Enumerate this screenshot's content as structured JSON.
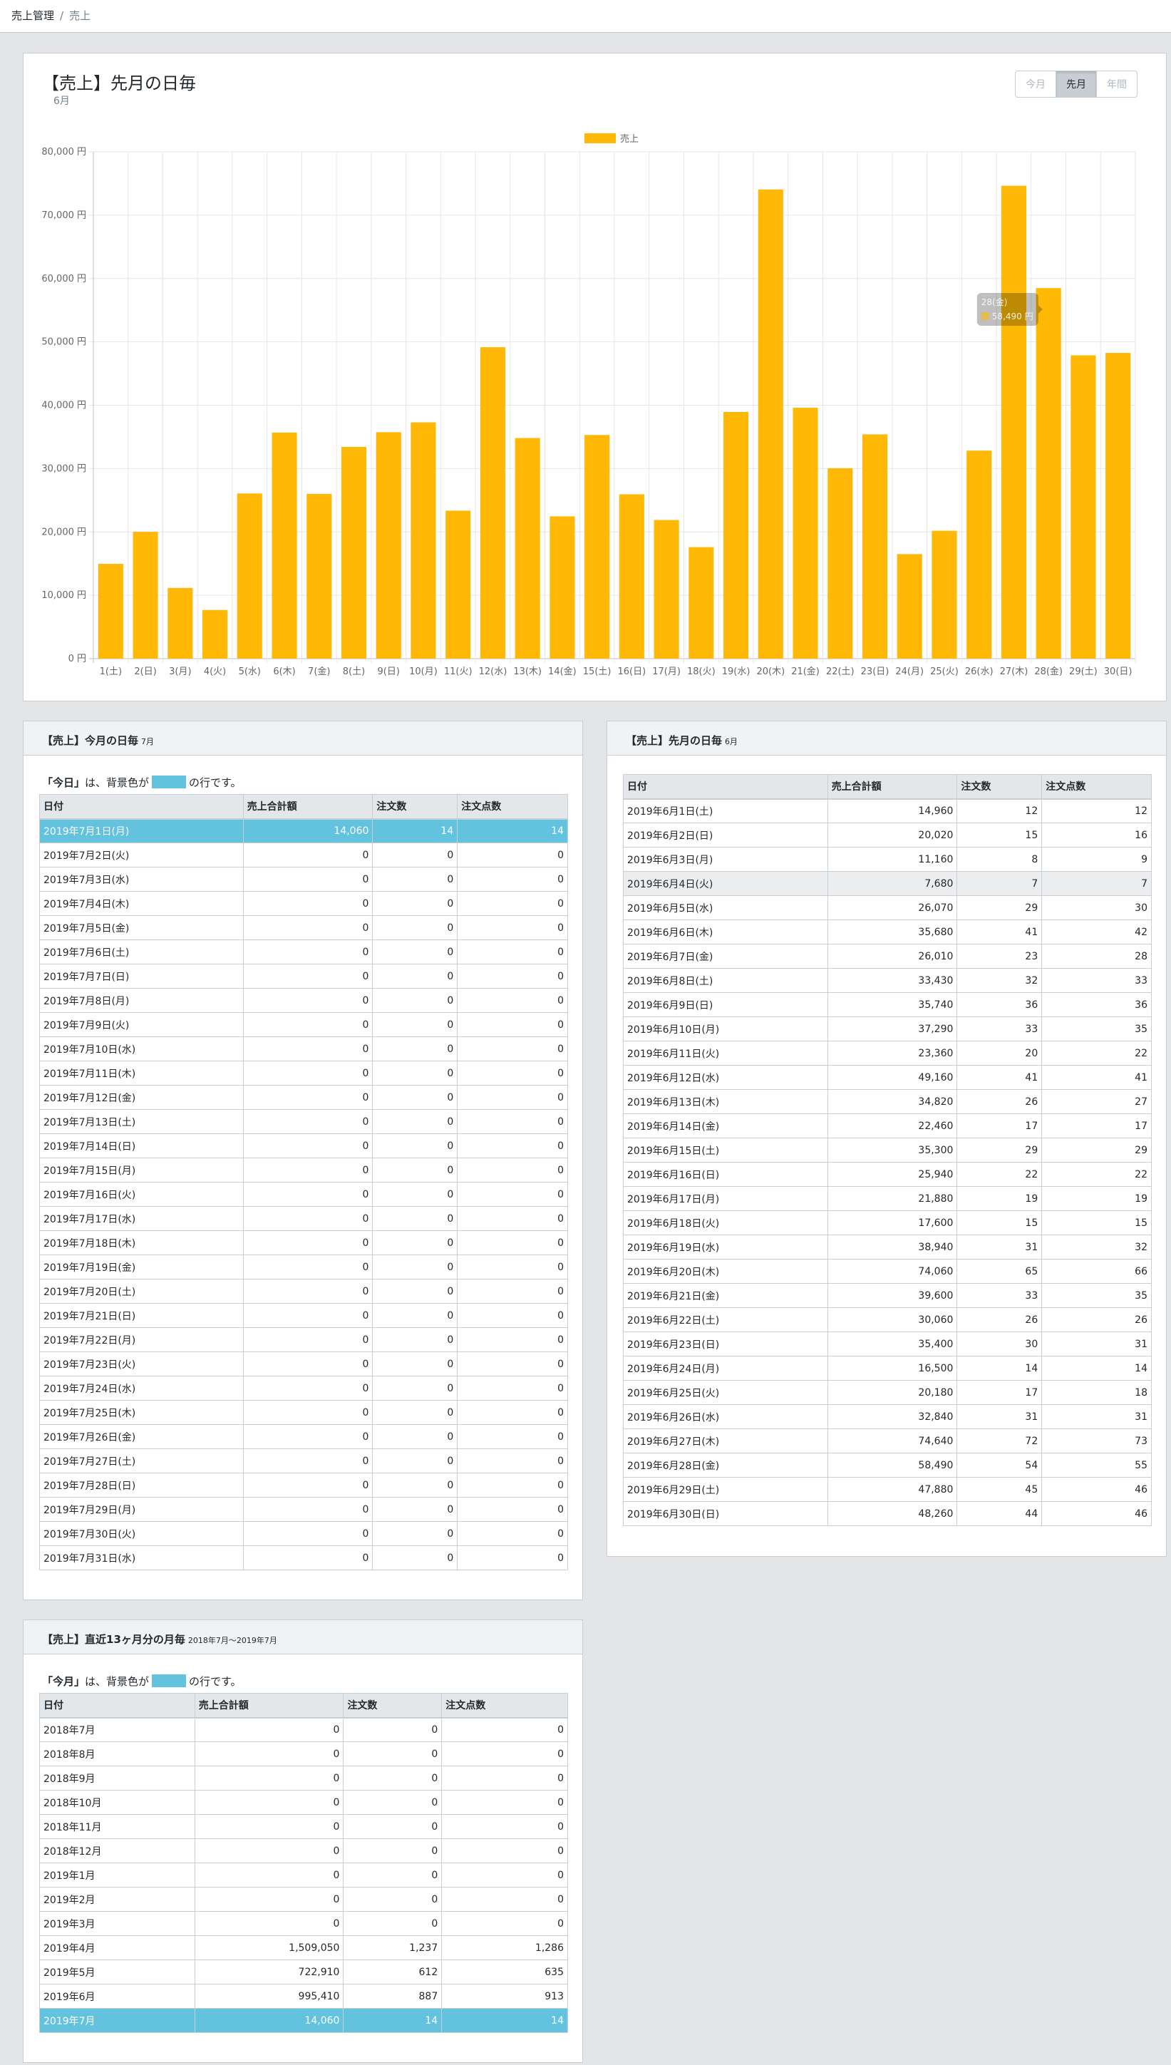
{
  "breadcrumb": {
    "root": "売上管理",
    "separator": "/",
    "current": "売上"
  },
  "chart_card": {
    "title": "【売上】先月の日毎",
    "subtitle": "6月",
    "buttons": [
      "今月",
      "先月",
      "年間"
    ],
    "active_button": "先月"
  },
  "chart_data": {
    "type": "bar",
    "series": [
      {
        "name": "売上",
        "color": "#ffb805",
        "values": [
          14960,
          20020,
          11160,
          7680,
          26070,
          35680,
          26010,
          33430,
          35740,
          37290,
          23360,
          49160,
          34820,
          22460,
          35300,
          25940,
          21880,
          17600,
          38940,
          74060,
          39600,
          30060,
          35400,
          16500,
          20180,
          32840,
          74640,
          58490,
          47880,
          48260
        ]
      }
    ],
    "categories": [
      "1(土)",
      "2(日)",
      "3(月)",
      "4(火)",
      "5(水)",
      "6(木)",
      "7(金)",
      "8(土)",
      "9(日)",
      "10(月)",
      "11(火)",
      "12(水)",
      "13(木)",
      "14(金)",
      "15(土)",
      "16(日)",
      "17(月)",
      "18(火)",
      "19(水)",
      "20(木)",
      "21(金)",
      "22(土)",
      "23(日)",
      "24(月)",
      "25(火)",
      "26(水)",
      "27(木)",
      "28(金)",
      "29(土)",
      "30(日)"
    ],
    "yticks": [
      "0 円",
      "10,000 円",
      "20,000 円",
      "30,000 円",
      "40,000 円",
      "50,000 円",
      "60,000 円",
      "70,000 円",
      "80,000 円"
    ],
    "ylim": [
      0,
      80000
    ],
    "legend_position": "top-center",
    "grid": true,
    "tooltip": {
      "category": "28(金)",
      "value": "58,490 円"
    }
  },
  "this_month": {
    "title": "【売上】今月の日毎",
    "title_small": "7月",
    "note_strong": "「今日」",
    "note_mid": "は、背景色が",
    "note_end": "の行です。",
    "headers": [
      "日付",
      "売上合計額",
      "注文数",
      "注文点数"
    ],
    "highlight_index": 0,
    "rows": [
      [
        "2019年7月1日(月)",
        "14,060",
        "14",
        "14"
      ],
      [
        "2019年7月2日(火)",
        "0",
        "0",
        "0"
      ],
      [
        "2019年7月3日(水)",
        "0",
        "0",
        "0"
      ],
      [
        "2019年7月4日(木)",
        "0",
        "0",
        "0"
      ],
      [
        "2019年7月5日(金)",
        "0",
        "0",
        "0"
      ],
      [
        "2019年7月6日(土)",
        "0",
        "0",
        "0"
      ],
      [
        "2019年7月7日(日)",
        "0",
        "0",
        "0"
      ],
      [
        "2019年7月8日(月)",
        "0",
        "0",
        "0"
      ],
      [
        "2019年7月9日(火)",
        "0",
        "0",
        "0"
      ],
      [
        "2019年7月10日(水)",
        "0",
        "0",
        "0"
      ],
      [
        "2019年7月11日(木)",
        "0",
        "0",
        "0"
      ],
      [
        "2019年7月12日(金)",
        "0",
        "0",
        "0"
      ],
      [
        "2019年7月13日(土)",
        "0",
        "0",
        "0"
      ],
      [
        "2019年7月14日(日)",
        "0",
        "0",
        "0"
      ],
      [
        "2019年7月15日(月)",
        "0",
        "0",
        "0"
      ],
      [
        "2019年7月16日(火)",
        "0",
        "0",
        "0"
      ],
      [
        "2019年7月17日(水)",
        "0",
        "0",
        "0"
      ],
      [
        "2019年7月18日(木)",
        "0",
        "0",
        "0"
      ],
      [
        "2019年7月19日(金)",
        "0",
        "0",
        "0"
      ],
      [
        "2019年7月20日(土)",
        "0",
        "0",
        "0"
      ],
      [
        "2019年7月21日(日)",
        "0",
        "0",
        "0"
      ],
      [
        "2019年7月22日(月)",
        "0",
        "0",
        "0"
      ],
      [
        "2019年7月23日(火)",
        "0",
        "0",
        "0"
      ],
      [
        "2019年7月24日(水)",
        "0",
        "0",
        "0"
      ],
      [
        "2019年7月25日(木)",
        "0",
        "0",
        "0"
      ],
      [
        "2019年7月26日(金)",
        "0",
        "0",
        "0"
      ],
      [
        "2019年7月27日(土)",
        "0",
        "0",
        "0"
      ],
      [
        "2019年7月28日(日)",
        "0",
        "0",
        "0"
      ],
      [
        "2019年7月29日(月)",
        "0",
        "0",
        "0"
      ],
      [
        "2019年7月30日(火)",
        "0",
        "0",
        "0"
      ],
      [
        "2019年7月31日(水)",
        "0",
        "0",
        "0"
      ]
    ]
  },
  "last_month": {
    "title": "【売上】先月の日毎",
    "title_small": "6月",
    "headers": [
      "日付",
      "売上合計額",
      "注文数",
      "注文点数"
    ],
    "hover_index": 3,
    "rows": [
      [
        "2019年6月1日(土)",
        "14,960",
        "12",
        "12"
      ],
      [
        "2019年6月2日(日)",
        "20,020",
        "15",
        "16"
      ],
      [
        "2019年6月3日(月)",
        "11,160",
        "8",
        "9"
      ],
      [
        "2019年6月4日(火)",
        "7,680",
        "7",
        "7"
      ],
      [
        "2019年6月5日(水)",
        "26,070",
        "29",
        "30"
      ],
      [
        "2019年6月6日(木)",
        "35,680",
        "41",
        "42"
      ],
      [
        "2019年6月7日(金)",
        "26,010",
        "23",
        "28"
      ],
      [
        "2019年6月8日(土)",
        "33,430",
        "32",
        "33"
      ],
      [
        "2019年6月9日(日)",
        "35,740",
        "36",
        "36"
      ],
      [
        "2019年6月10日(月)",
        "37,290",
        "33",
        "35"
      ],
      [
        "2019年6月11日(火)",
        "23,360",
        "20",
        "22"
      ],
      [
        "2019年6月12日(水)",
        "49,160",
        "41",
        "41"
      ],
      [
        "2019年6月13日(木)",
        "34,820",
        "26",
        "27"
      ],
      [
        "2019年6月14日(金)",
        "22,460",
        "17",
        "17"
      ],
      [
        "2019年6月15日(土)",
        "35,300",
        "29",
        "29"
      ],
      [
        "2019年6月16日(日)",
        "25,940",
        "22",
        "22"
      ],
      [
        "2019年6月17日(月)",
        "21,880",
        "19",
        "19"
      ],
      [
        "2019年6月18日(火)",
        "17,600",
        "15",
        "15"
      ],
      [
        "2019年6月19日(水)",
        "38,940",
        "31",
        "32"
      ],
      [
        "2019年6月20日(木)",
        "74,060",
        "65",
        "66"
      ],
      [
        "2019年6月21日(金)",
        "39,600",
        "33",
        "35"
      ],
      [
        "2019年6月22日(土)",
        "30,060",
        "26",
        "26"
      ],
      [
        "2019年6月23日(日)",
        "35,400",
        "30",
        "31"
      ],
      [
        "2019年6月24日(月)",
        "16,500",
        "14",
        "14"
      ],
      [
        "2019年6月25日(火)",
        "20,180",
        "17",
        "18"
      ],
      [
        "2019年6月26日(水)",
        "32,840",
        "31",
        "31"
      ],
      [
        "2019年6月27日(木)",
        "74,640",
        "72",
        "73"
      ],
      [
        "2019年6月28日(金)",
        "58,490",
        "54",
        "55"
      ],
      [
        "2019年6月29日(土)",
        "47,880",
        "45",
        "46"
      ],
      [
        "2019年6月30日(日)",
        "48,260",
        "44",
        "46"
      ]
    ]
  },
  "monthly": {
    "title": "【売上】直近13ヶ月分の月毎",
    "title_small": "2018年7月〜2019年7月",
    "note_strong": "「今月」",
    "note_mid": "は、背景色が",
    "note_end": "の行です。",
    "headers": [
      "日付",
      "売上合計額",
      "注文数",
      "注文点数"
    ],
    "highlight_index": 12,
    "rows": [
      [
        "2018年7月",
        "0",
        "0",
        "0"
      ],
      [
        "2018年8月",
        "0",
        "0",
        "0"
      ],
      [
        "2018年9月",
        "0",
        "0",
        "0"
      ],
      [
        "2018年10月",
        "0",
        "0",
        "0"
      ],
      [
        "2018年11月",
        "0",
        "0",
        "0"
      ],
      [
        "2018年12月",
        "0",
        "0",
        "0"
      ],
      [
        "2019年1月",
        "0",
        "0",
        "0"
      ],
      [
        "2019年2月",
        "0",
        "0",
        "0"
      ],
      [
        "2019年3月",
        "0",
        "0",
        "0"
      ],
      [
        "2019年4月",
        "1,509,050",
        "1,237",
        "1,286"
      ],
      [
        "2019年5月",
        "722,910",
        "612",
        "635"
      ],
      [
        "2019年6月",
        "995,410",
        "887",
        "913"
      ],
      [
        "2019年7月",
        "14,060",
        "14",
        "14"
      ]
    ]
  }
}
